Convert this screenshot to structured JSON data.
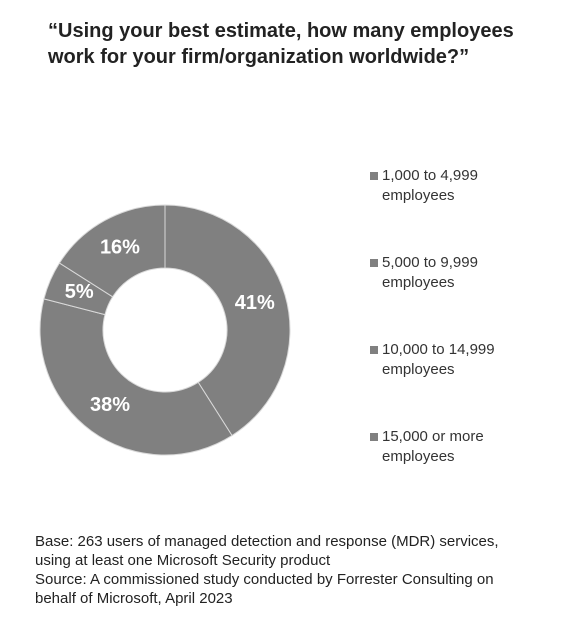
{
  "chart_data": {
    "type": "donut",
    "title": "“Using your best estimate, how many employees work for your firm/organization worldwide?”",
    "categories": [
      "1,000 to 4,999 employees",
      "5,000 to 9,999 employees",
      "10,000 to 14,999 employees",
      "15,000 or more employees"
    ],
    "values": [
      41,
      38,
      5,
      16
    ],
    "value_labels": [
      "41%",
      "38%",
      "5%",
      "16%"
    ],
    "color": "#808080",
    "notes": [
      "Base: 263 users of managed detection and response (MDR) services, using at least one Microsoft Security product",
      "Source: A commissioned study conducted by Forrester Consulting on behalf of Microsoft, April 2023"
    ]
  }
}
